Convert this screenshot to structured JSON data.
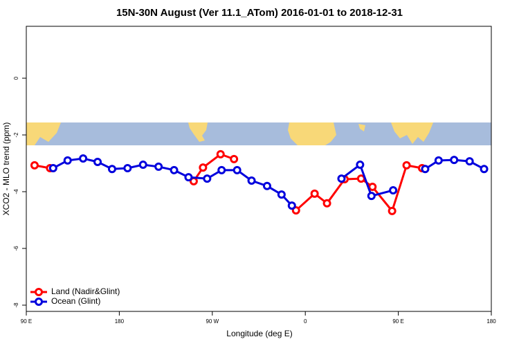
{
  "chart_data": {
    "type": "line",
    "title": "15N-30N August (Ver 11.1_ATom)   2016-01-01 to 2018-12-31",
    "x_label": "Longitude (deg E)",
    "y_label": "XCO2 - MLO trend (ppm)",
    "xlim": [
      90,
      540
    ],
    "xticks": [
      {
        "value": 90,
        "label": "90 E"
      },
      {
        "value": 180,
        "label": "180"
      },
      {
        "value": 270,
        "label": "90 W"
      },
      {
        "value": 360,
        "label": "0"
      },
      {
        "value": 450,
        "label": "90 E"
      },
      {
        "value": 540,
        "label": "180"
      }
    ],
    "ylim": [
      -8.22,
      1.83
    ],
    "yticks": [
      0,
      -2,
      -4,
      -6,
      -8
    ],
    "legend": "bottom-left",
    "series": [
      {
        "name": "Land (Nadir&Glint)",
        "color": "#ff0000",
        "x": [
          98,
          113,
          null,
          252,
          261,
          278,
          291,
          null,
          351,
          369,
          381,
          398,
          414,
          425,
          444,
          458,
          473
        ],
        "values": [
          -3.07,
          -3.17,
          null,
          -3.63,
          -3.15,
          -2.68,
          -2.85,
          null,
          -4.66,
          -4.07,
          -4.41,
          -3.56,
          -3.54,
          -3.83,
          -4.68,
          -3.07,
          -3.17
        ]
      },
      {
        "name": "Ocean (Glint)",
        "color": "#0000dd",
        "x": [
          116,
          130,
          145,
          159,
          173,
          188,
          203,
          218,
          233,
          247,
          265,
          279,
          294,
          308,
          323,
          337,
          347,
          null,
          395,
          413,
          424,
          445,
          null,
          476,
          489,
          504,
          519,
          533
        ],
        "values": [
          -3.17,
          -2.9,
          -2.83,
          -2.95,
          -3.2,
          -3.17,
          -3.05,
          -3.12,
          -3.24,
          -3.49,
          -3.54,
          -3.24,
          -3.24,
          -3.61,
          -3.8,
          -4.1,
          -4.49,
          null,
          -3.54,
          -3.05,
          -4.15,
          -3.95,
          null,
          -3.2,
          -2.9,
          -2.88,
          -2.93,
          -3.2
        ]
      }
    ]
  }
}
